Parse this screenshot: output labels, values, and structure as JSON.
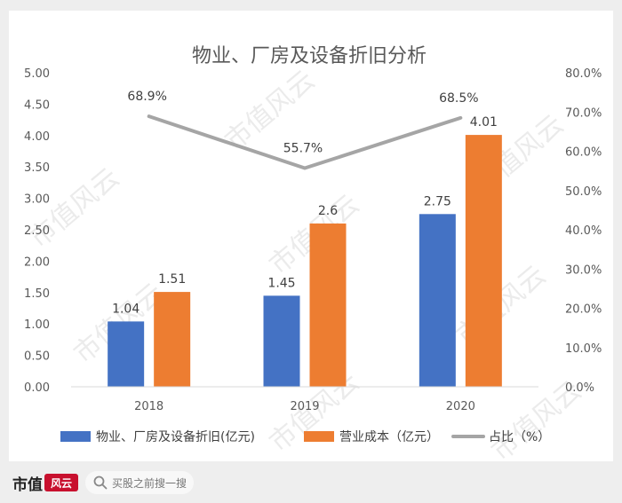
{
  "chart_data": {
    "type": "bar",
    "title": "物业、厂房及设备折旧分析",
    "categories": [
      "2018",
      "2019",
      "2020"
    ],
    "series": [
      {
        "name": "物业、厂房及设备折旧(亿元)",
        "kind": "bar",
        "axis": "left",
        "color": "#4472c4",
        "values": [
          1.04,
          1.45,
          2.75
        ],
        "labels": [
          "1.04",
          "1.45",
          "2.75"
        ]
      },
      {
        "name": "营业成本（亿元）",
        "kind": "bar",
        "axis": "left",
        "color": "#ed7d31",
        "values": [
          1.51,
          2.6,
          4.01
        ],
        "labels": [
          "1.51",
          "2.6",
          "4.01"
        ]
      },
      {
        "name": "占比（%）",
        "kind": "line",
        "axis": "right",
        "color": "#a5a5a5",
        "values": [
          68.9,
          55.7,
          68.5
        ],
        "labels": [
          "68.9%",
          "55.7%",
          "68.5%"
        ]
      }
    ],
    "left_axis": {
      "min": 0,
      "max": 5,
      "ticks": [
        "0.00",
        "0.50",
        "1.00",
        "1.50",
        "2.00",
        "2.50",
        "3.00",
        "3.50",
        "4.00",
        "4.50",
        "5.00"
      ]
    },
    "right_axis": {
      "min": 0,
      "max": 80,
      "ticks": [
        "0.0%",
        "10.0%",
        "20.0%",
        "30.0%",
        "40.0%",
        "50.0%",
        "60.0%",
        "70.0%",
        "80.0%"
      ]
    },
    "grid": false,
    "legend_position": "bottom"
  },
  "watermark": "市值风云",
  "footer": {
    "brand": "市值",
    "brand_stamp": "风云",
    "search_placeholder": "买股之前搜一搜"
  }
}
